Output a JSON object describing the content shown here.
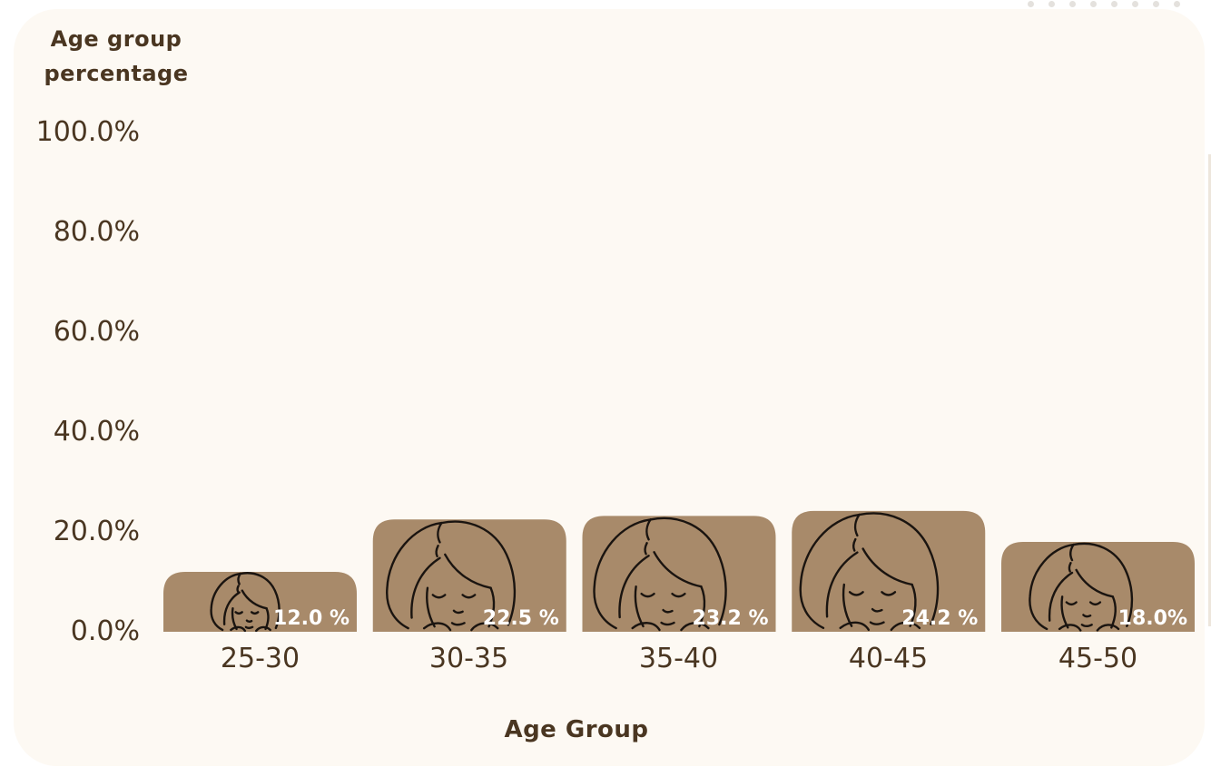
{
  "chart_data": {
    "type": "bar",
    "xlabel": "Age Group",
    "ylabel": "Age group percentage",
    "categories": [
      "25-30",
      "30-35",
      "35-40",
      "40-45",
      "45-50"
    ],
    "values": [
      12.0,
      22.5,
      23.2,
      24.2,
      18.0
    ],
    "value_labels": [
      "12.0 %",
      "22.5 %",
      "23.2 %",
      "24.2 %",
      "18.0%"
    ],
    "yticks": [
      "0.0%",
      "20.0%",
      "40.0%",
      "60.0%",
      "80.0%",
      "100.0%"
    ],
    "ylim": [
      0,
      100
    ],
    "grid": false,
    "bar_color": "#a88a6a",
    "text_color": "#4a3621",
    "background": "#fdf9f3",
    "bar_icon": "woman-face-icon"
  }
}
